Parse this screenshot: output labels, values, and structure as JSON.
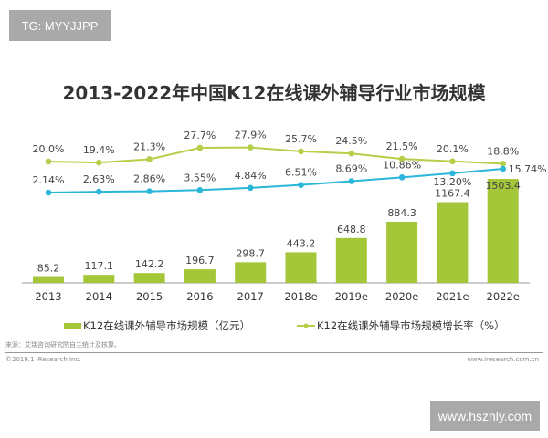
{
  "watermarks": {
    "top_left": "TG: MYYJJPP",
    "bottom_right": "www.hszhly.com"
  },
  "chart_data": {
    "type": "bar+line",
    "title": "2013-2022年中国K12在线课外辅导行业市场规模",
    "categories": [
      "2013",
      "2014",
      "2015",
      "2016",
      "2017",
      "2018e",
      "2019e",
      "2020e",
      "2021e",
      "2022e"
    ],
    "series": [
      {
        "name": "K12在线课外辅导市场规模（亿元）",
        "type": "bar",
        "color": "#a4c639",
        "values": [
          85.2,
          117.1,
          142.2,
          196.7,
          298.7,
          443.2,
          648.8,
          884.3,
          1167.4,
          1503.4
        ],
        "labels": [
          "85.2",
          "117.1",
          "142.2",
          "196.7",
          "298.7",
          "443.2",
          "648.8",
          "884.3",
          "1167.4",
          "1503.4"
        ]
      },
      {
        "name": "K12在线课外辅导市场规模增长率（%）",
        "type": "line",
        "color": "#b5cf4a",
        "values": [
          20.0,
          19.4,
          21.3,
          27.7,
          27.9,
          25.7,
          24.5,
          21.5,
          20.1,
          18.8
        ],
        "labels": [
          "20.0%",
          "19.4%",
          "21.3%",
          "27.7%",
          "27.9%",
          "25.7%",
          "24.5%",
          "21.5%",
          "20.1%",
          "18.8%"
        ]
      },
      {
        "type": "line",
        "color": "#29b6d8",
        "values": [
          2.14,
          2.63,
          2.86,
          3.55,
          4.84,
          6.51,
          8.69,
          10.86,
          13.2,
          15.74
        ],
        "labels": [
          "2.14%",
          "2.63%",
          "2.86%",
          "3.55%",
          "4.84%",
          "6.51%",
          "8.69%",
          "10.86%",
          "13.20%",
          "15.74%"
        ]
      }
    ],
    "grid": false,
    "legend_position": "bottom"
  },
  "footer": {
    "source": "来源：艾瑞咨询研究院自主统计及核算。",
    "copyright": "©2019.1 iResearch Inc.",
    "url": "www.iresearch.com.cn"
  }
}
